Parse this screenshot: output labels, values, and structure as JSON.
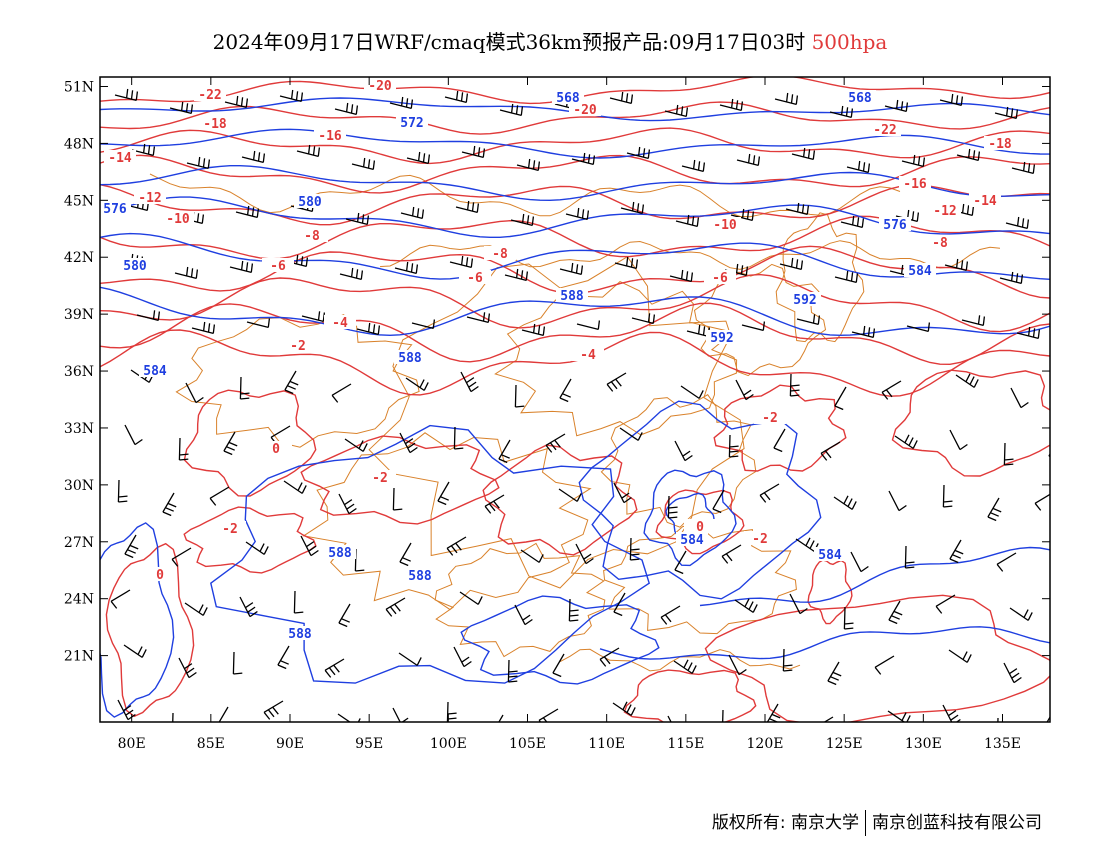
{
  "header": {
    "title_main": "2024年09月17日WRF/cmaq模式36km预报产品:09月17日03时",
    "title_level": "500hpa"
  },
  "map": {
    "lon_range": [
      78,
      138
    ],
    "lat_range": [
      17.5,
      51.5
    ],
    "lon_ticks": [
      "80E",
      "85E",
      "90E",
      "95E",
      "100E",
      "105E",
      "110E",
      "115E",
      "120E",
      "125E",
      "130E",
      "135E"
    ],
    "lat_ticks": [
      "51N",
      "48N",
      "45N",
      "42N",
      "39N",
      "36N",
      "33N",
      "30N",
      "27N",
      "24N",
      "21N"
    ],
    "height_contour_labels": [
      "588",
      "584",
      "580",
      "576",
      "572",
      "568",
      "592",
      "588",
      "584",
      "580",
      "584",
      "576",
      "568",
      "588",
      "592",
      "588",
      "584",
      "588"
    ],
    "temperature_contour_labels": [
      "-22",
      "-20",
      "-18",
      "-16",
      "-14",
      "-12",
      "-10",
      "-8",
      "-6",
      "-4",
      "-2",
      "0",
      "-2",
      "-4",
      "-6",
      "-8",
      "-10",
      "-12",
      "-14",
      "-16",
      "-18",
      "-20",
      "-22",
      "-2",
      "0",
      "-2",
      "-6",
      "-8",
      "-2",
      "0"
    ],
    "colors": {
      "height_contour": "#1f3fe0",
      "temperature_contour": "#e03a3a",
      "border": "#d9822b",
      "wind_barb": "#000000",
      "level_text": "#e03a3a"
    }
  },
  "footer": {
    "copyright": "版权所有: 南京大学",
    "company": "南京创蓝科技有限公司"
  }
}
